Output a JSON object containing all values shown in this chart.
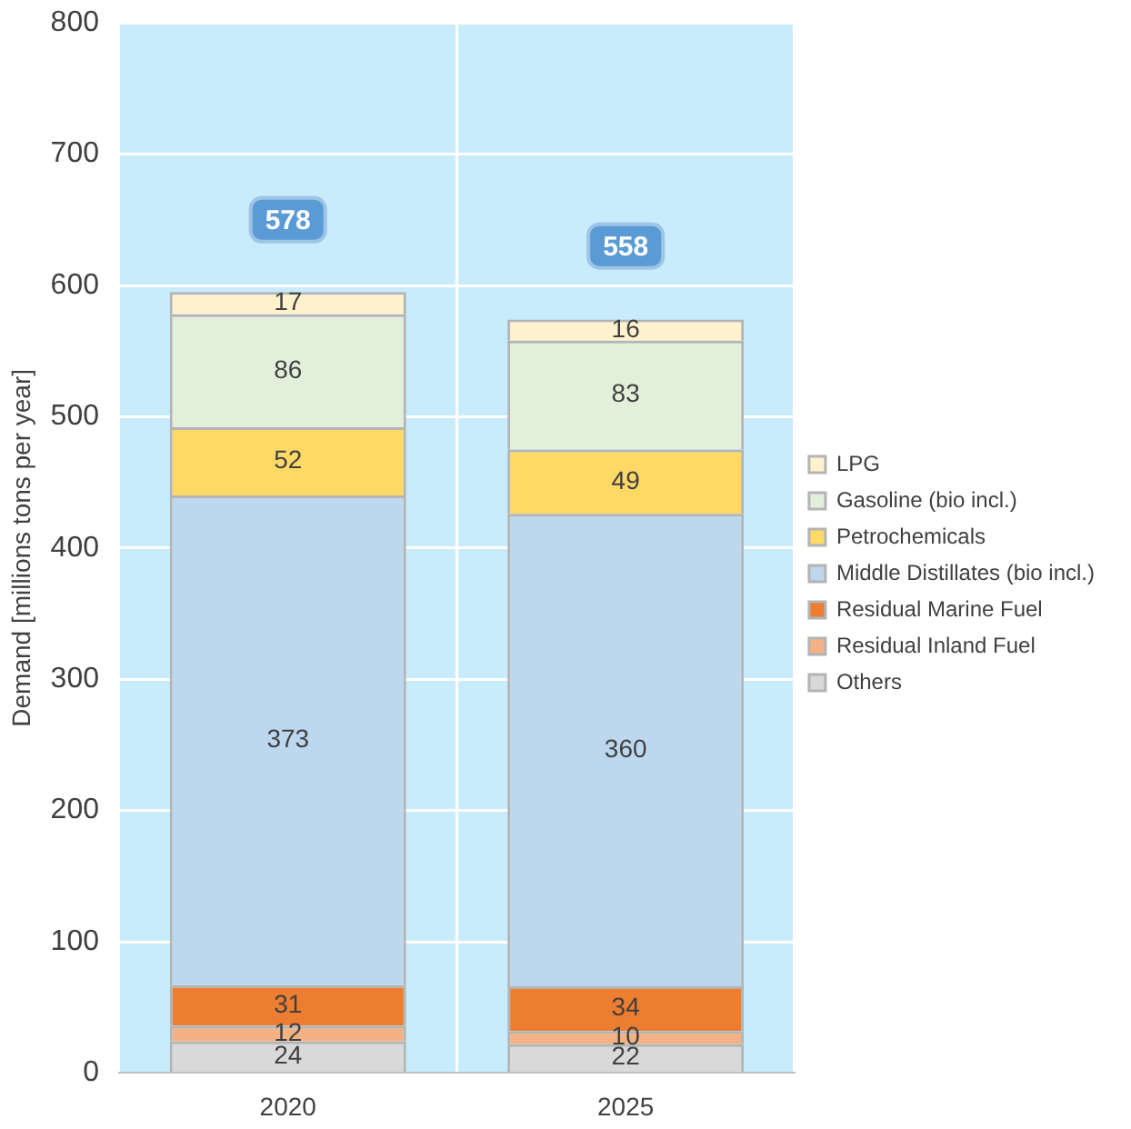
{
  "chart_data": {
    "type": "bar",
    "stacked": true,
    "ylabel": "Demand [millions tons per year]",
    "categories": [
      "2020",
      "2025"
    ],
    "series": [
      {
        "name": "Others",
        "color": "#d9d9d9",
        "values": [
          24,
          22
        ]
      },
      {
        "name": "Residual Inland Fuel",
        "color": "#f4b183",
        "values": [
          12,
          10
        ]
      },
      {
        "name": "Residual Marine Fuel",
        "color": "#ed7d31",
        "values": [
          31,
          34
        ]
      },
      {
        "name": "Middle Distillates (bio incl.)",
        "color": "#bdd7ee",
        "values": [
          373,
          360
        ]
      },
      {
        "name": "Petrochemicals",
        "color": "#ffd966",
        "values": [
          52,
          49
        ]
      },
      {
        "name": "Gasoline (bio incl.)",
        "color": "#e2efda",
        "values": [
          86,
          83
        ]
      },
      {
        "name": "LPG",
        "color": "#fff2cc",
        "values": [
          17,
          16
        ]
      }
    ],
    "annotations": [
      {
        "text": "578",
        "x": "2020",
        "y": 650
      },
      {
        "text": "558",
        "x": "2025",
        "y": 630
      }
    ],
    "ylim": [
      0,
      800
    ],
    "yticks": [
      0,
      100,
      200,
      300,
      400,
      500,
      600,
      700,
      800
    ],
    "grid": true,
    "legend": "right",
    "data_labels": true
  }
}
